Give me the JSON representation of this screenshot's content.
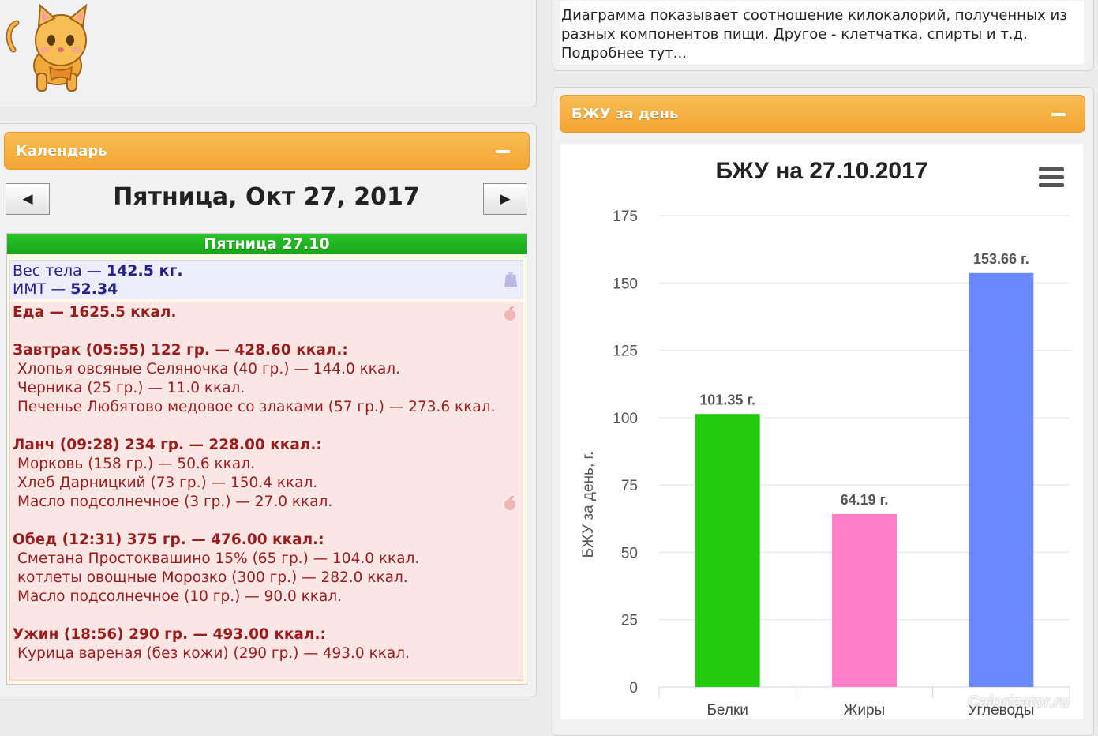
{
  "left_top": {
    "mascot": "cat-icon"
  },
  "calendar": {
    "title": "Календарь",
    "date_label": "Пятница, Окт 27, 2017",
    "prev_icon": "◀",
    "next_icon": "▶",
    "day_header": "Пятница 27.10",
    "weight": {
      "label1": "Вес тела — ",
      "value1": "142.5 кг.",
      "label2": "ИМТ — ",
      "value2": "52.34"
    },
    "food_total": "Еда — 1625.5 ккал.",
    "meals": [
      {
        "title": "Завтрак (05:55) 122 гр. — 428.60 ккал.:",
        "items": [
          "Хлопья овсяные Селяночка (40 гр.) — 144.0 ккал.",
          "Черника (25 гр.) — 11.0 ккал.",
          "Печенье Любятово медовое со злаками (57 гр.) — 273.6 ккал."
        ]
      },
      {
        "title": "Ланч (09:28) 234 гр. — 228.00 ккал.:",
        "items": [
          "Морковь (158 гр.) — 50.6 ккал.",
          "Хлеб Дарницкий (73 гр.) — 150.4 ккал.",
          "Масло подсолнечное (3 гр.) — 27.0 ккал."
        ]
      },
      {
        "title": "Обед (12:31) 375 гр. — 476.00 ккал.:",
        "items": [
          "Сметана Простоквашино 15% (65 гр.) — 104.0 ккал.",
          "котлеты овощные Морозко (300 гр.) — 282.0 ккал.",
          "Масло подсолнечное (10 гр.) — 90.0 ккал."
        ]
      },
      {
        "title": "Ужин (18:56) 290 гр. — 493.00 ккал.:",
        "items": [
          "Курица вареная (без кожи) (290 гр.) — 493.0 ккал."
        ]
      }
    ]
  },
  "right_top": {
    "text_lines": [
      "Диаграмма показывает соотношение килокалорий, полученных из",
      "разных компонентов пищи. Другое - клетчатка, спирты и т.д.",
      "Подробнее тут..."
    ]
  },
  "bju_panel": {
    "title": "БЖУ за день"
  },
  "chart_data": {
    "type": "bar",
    "title": "БЖУ на 27.10.2017",
    "ylabel": "БЖУ за день, г.",
    "xlabel": "",
    "categories": [
      "Белки",
      "Жиры",
      "Углеводы"
    ],
    "values": [
      101.35,
      64.19,
      153.66
    ],
    "value_labels": [
      "101.35 г.",
      "64.19 г.",
      "153.66 г."
    ],
    "colors": [
      "#22cc0c",
      "#ff7fc8",
      "#6b88ff"
    ],
    "ylim": [
      0,
      175
    ],
    "yticks": [
      0,
      25,
      50,
      75,
      100,
      125,
      150,
      175
    ],
    "grid": true,
    "menu_icon": "hamburger-menu-icon"
  },
  "watermark": "Calorizator.ru"
}
